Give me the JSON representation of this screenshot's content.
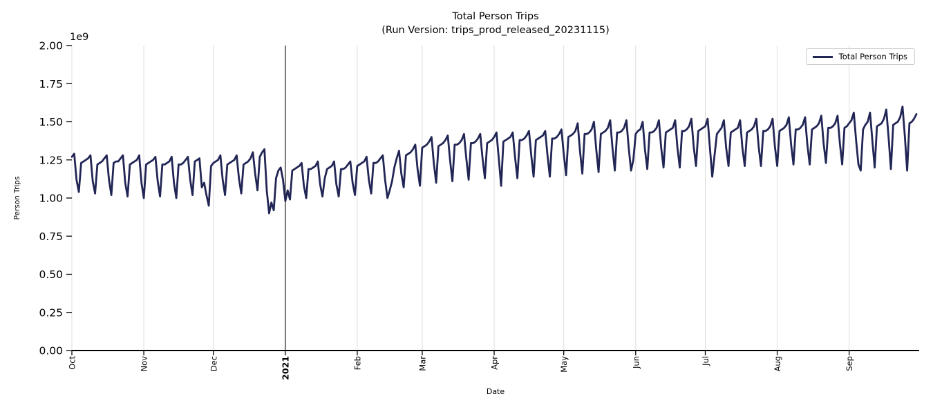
{
  "header": {
    "title": "Total Person Trips",
    "subtitle": "(Run Version: trips_prod_released_20231115)"
  },
  "axes": {
    "xlabel": "Date",
    "ylabel": "Person Trips",
    "offset_label": "1e9",
    "y_ticks": [
      "0.00",
      "0.25",
      "0.50",
      "0.75",
      "1.00",
      "1.25",
      "1.50",
      "1.75",
      "2.00"
    ],
    "y_tick_values_1e9": [
      0,
      0.25,
      0.5,
      0.75,
      1.0,
      1.25,
      1.5,
      1.75,
      2.0
    ],
    "x_ticks": [
      {
        "label": "Oct",
        "day": 0,
        "bold": false
      },
      {
        "label": "Nov",
        "day": 31,
        "bold": false
      },
      {
        "label": "Dec",
        "day": 61,
        "bold": false
      },
      {
        "label": "2021",
        "day": 92,
        "bold": true
      },
      {
        "label": "Feb",
        "day": 123,
        "bold": false
      },
      {
        "label": "Mar",
        "day": 151,
        "bold": false
      },
      {
        "label": "Apr",
        "day": 182,
        "bold": false
      },
      {
        "label": "May",
        "day": 212,
        "bold": false
      },
      {
        "label": "Jun",
        "day": 243,
        "bold": false
      },
      {
        "label": "Jul",
        "day": 273,
        "bold": false
      },
      {
        "label": "Aug",
        "day": 304,
        "bold": false
      },
      {
        "label": "Sep",
        "day": 335,
        "bold": false
      }
    ]
  },
  "legend": {
    "entries": [
      {
        "label": "Total Person Trips",
        "color": "#222655"
      }
    ],
    "position": "upper right"
  },
  "colors": {
    "line": "#222655",
    "grid": "#dcdcdc",
    "vline": "#3c3c3c",
    "axis": "#000000",
    "tick_text": "#000000",
    "background": "#ffffff",
    "legend_border": "#cccccc"
  },
  "chart_data": {
    "type": "line",
    "title": "Total Person Trips",
    "subtitle": "(Run Version: trips_prod_released_20231115)",
    "xlabel": "Date",
    "ylabel": "Person Trips",
    "y_scale_offset": "1e9",
    "ylim_1e9": [
      0.0,
      2.0
    ],
    "grid": "vertical gridlines at month starts only",
    "legend_position": "upper right",
    "x_start": "2020-10-01",
    "x_end": "2021-09-30",
    "cadence": "daily",
    "vline": {
      "day": 92,
      "at": "2021-01-01"
    },
    "series": [
      {
        "name": "Total Person Trips",
        "color": "#222655",
        "values_1e9": [
          1.27,
          1.29,
          1.12,
          1.04,
          1.23,
          1.24,
          1.25,
          1.26,
          1.28,
          1.11,
          1.03,
          1.22,
          1.23,
          1.24,
          1.26,
          1.28,
          1.12,
          1.02,
          1.23,
          1.24,
          1.24,
          1.26,
          1.28,
          1.1,
          1.01,
          1.22,
          1.23,
          1.24,
          1.25,
          1.28,
          1.1,
          1.0,
          1.22,
          1.23,
          1.24,
          1.25,
          1.27,
          1.11,
          1.01,
          1.22,
          1.22,
          1.23,
          1.24,
          1.27,
          1.1,
          1.0,
          1.22,
          1.22,
          1.23,
          1.25,
          1.27,
          1.12,
          1.02,
          1.24,
          1.25,
          1.26,
          1.07,
          1.1,
          1.02,
          0.95,
          1.21,
          1.23,
          1.24,
          1.25,
          1.28,
          1.12,
          1.02,
          1.22,
          1.23,
          1.24,
          1.25,
          1.28,
          1.13,
          1.03,
          1.22,
          1.23,
          1.24,
          1.26,
          1.3,
          1.16,
          1.05,
          1.27,
          1.3,
          1.32,
          1.05,
          0.9,
          0.97,
          0.92,
          1.13,
          1.18,
          1.2,
          1.12,
          0.98,
          1.05,
          0.99,
          1.18,
          1.19,
          1.2,
          1.21,
          1.23,
          1.08,
          1.0,
          1.19,
          1.19,
          1.2,
          1.21,
          1.24,
          1.09,
          1.01,
          1.13,
          1.19,
          1.2,
          1.21,
          1.24,
          1.09,
          1.01,
          1.19,
          1.19,
          1.2,
          1.22,
          1.24,
          1.1,
          1.02,
          1.21,
          1.22,
          1.23,
          1.24,
          1.27,
          1.12,
          1.03,
          1.23,
          1.23,
          1.24,
          1.26,
          1.28,
          1.12,
          1.0,
          1.05,
          1.11,
          1.2,
          1.26,
          1.31,
          1.16,
          1.07,
          1.28,
          1.29,
          1.3,
          1.32,
          1.35,
          1.19,
          1.08,
          1.33,
          1.34,
          1.35,
          1.37,
          1.4,
          1.23,
          1.1,
          1.34,
          1.35,
          1.36,
          1.38,
          1.41,
          1.25,
          1.11,
          1.35,
          1.35,
          1.36,
          1.38,
          1.42,
          1.26,
          1.12,
          1.36,
          1.36,
          1.37,
          1.39,
          1.42,
          1.26,
          1.13,
          1.36,
          1.37,
          1.38,
          1.4,
          1.43,
          1.26,
          1.08,
          1.37,
          1.38,
          1.39,
          1.4,
          1.43,
          1.27,
          1.13,
          1.38,
          1.38,
          1.39,
          1.41,
          1.44,
          1.28,
          1.14,
          1.38,
          1.39,
          1.4,
          1.41,
          1.44,
          1.28,
          1.14,
          1.39,
          1.39,
          1.4,
          1.42,
          1.45,
          1.29,
          1.15,
          1.4,
          1.41,
          1.42,
          1.44,
          1.49,
          1.31,
          1.16,
          1.42,
          1.42,
          1.43,
          1.45,
          1.5,
          1.32,
          1.17,
          1.42,
          1.43,
          1.44,
          1.46,
          1.51,
          1.33,
          1.18,
          1.43,
          1.43,
          1.44,
          1.46,
          1.51,
          1.33,
          1.18,
          1.25,
          1.42,
          1.44,
          1.45,
          1.5,
          1.32,
          1.19,
          1.43,
          1.43,
          1.44,
          1.46,
          1.51,
          1.33,
          1.2,
          1.43,
          1.44,
          1.45,
          1.46,
          1.51,
          1.33,
          1.2,
          1.44,
          1.44,
          1.45,
          1.47,
          1.52,
          1.34,
          1.21,
          1.44,
          1.45,
          1.46,
          1.47,
          1.52,
          1.33,
          1.14,
          1.28,
          1.42,
          1.44,
          1.46,
          1.51,
          1.33,
          1.21,
          1.43,
          1.44,
          1.45,
          1.46,
          1.51,
          1.33,
          1.21,
          1.43,
          1.44,
          1.45,
          1.47,
          1.52,
          1.34,
          1.21,
          1.44,
          1.44,
          1.45,
          1.47,
          1.52,
          1.34,
          1.21,
          1.44,
          1.45,
          1.46,
          1.48,
          1.53,
          1.35,
          1.22,
          1.45,
          1.45,
          1.46,
          1.48,
          1.53,
          1.35,
          1.22,
          1.45,
          1.46,
          1.47,
          1.49,
          1.54,
          1.36,
          1.23,
          1.46,
          1.46,
          1.47,
          1.49,
          1.54,
          1.36,
          1.22,
          1.46,
          1.47,
          1.49,
          1.51,
          1.56,
          1.38,
          1.22,
          1.18,
          1.45,
          1.48,
          1.5,
          1.56,
          1.38,
          1.2,
          1.47,
          1.48,
          1.49,
          1.52,
          1.58,
          1.4,
          1.19,
          1.48,
          1.49,
          1.5,
          1.53,
          1.6,
          1.41,
          1.18,
          1.49,
          1.5,
          1.52,
          1.55
        ]
      }
    ]
  }
}
